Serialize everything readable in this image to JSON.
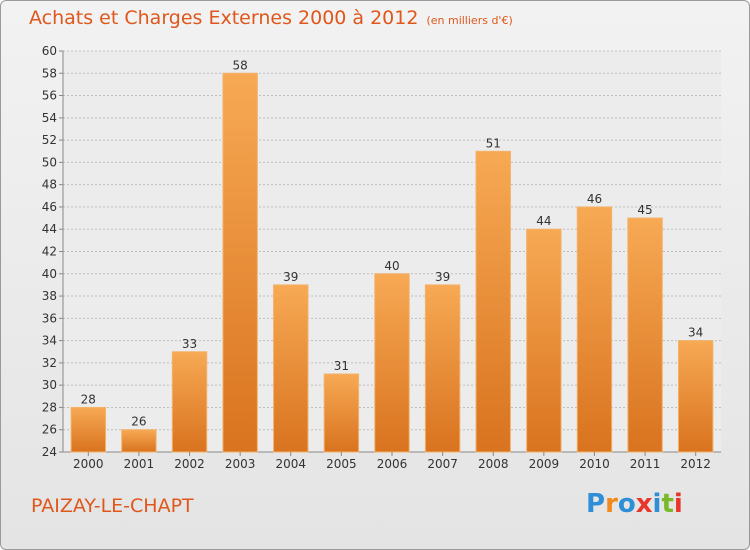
{
  "header": {
    "title": "Achats et Charges Externes 2000 à 2012",
    "subtitle": "(en milliers d'€)"
  },
  "footer": {
    "commune": "PAIZAY-LE-CHAPT",
    "logo_text": "Proxiti"
  },
  "colors": {
    "bar_light": "#f7a954",
    "bar_dark": "#d9731f",
    "title": "#e0571c",
    "grid": "#bfbfbf",
    "logo": [
      "#2e8fd6",
      "#f08a1c",
      "#2e8fd6",
      "#e8362b",
      "#2e8fd6",
      "#7ab82a",
      "#e8362b"
    ]
  },
  "chart_data": {
    "type": "bar",
    "title": "Achats et Charges Externes 2000 à 2012",
    "subtitle": "(en milliers d'€)",
    "categories": [
      "2000",
      "2001",
      "2002",
      "2003",
      "2004",
      "2005",
      "2006",
      "2007",
      "2008",
      "2009",
      "2010",
      "2011",
      "2012"
    ],
    "values": [
      28,
      26,
      33,
      58,
      39,
      31,
      40,
      39,
      51,
      44,
      46,
      45,
      34
    ],
    "ylim": [
      24,
      60
    ],
    "ytick_step": 2,
    "grid": true,
    "data_labels": true
  }
}
